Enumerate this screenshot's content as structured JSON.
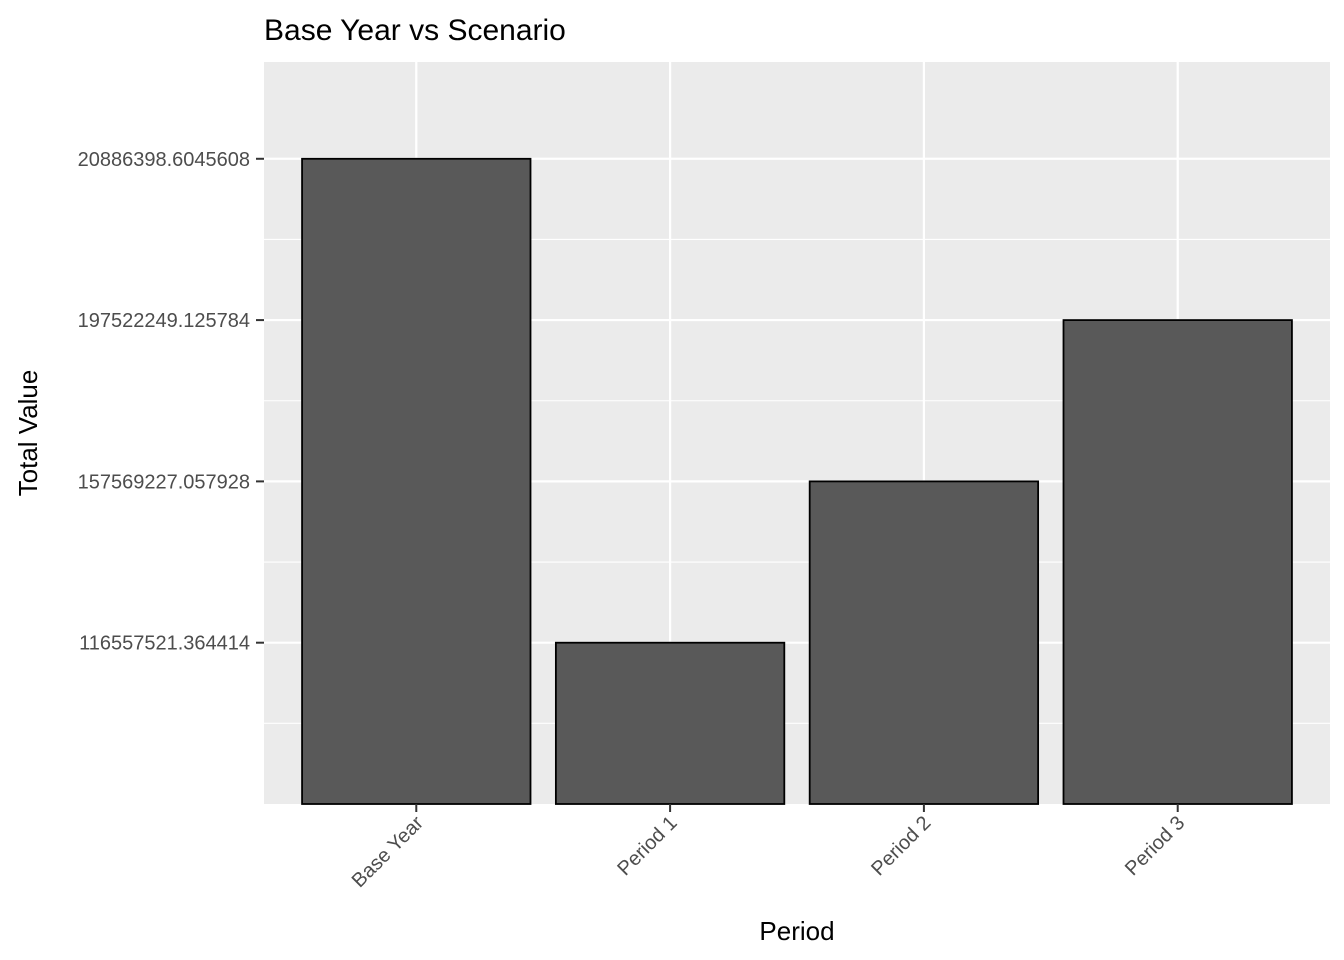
{
  "chart_data": {
    "type": "bar",
    "title": "Base Year vs Scenario",
    "xlabel": "Period",
    "ylabel": "Total Value",
    "categories": [
      "Base Year",
      "Period 1",
      "Period 2",
      "Period 3"
    ],
    "values": [
      4,
      1,
      2,
      3
    ],
    "y_ticks": [
      {
        "value": 1,
        "label": "116557521.364414"
      },
      {
        "value": 2,
        "label": "157569227.057928"
      },
      {
        "value": 3,
        "label": "197522249.125784"
      },
      {
        "value": 4,
        "label": "20886398.6045608"
      }
    ],
    "ylim": [
      0,
      4.6
    ],
    "grid": true,
    "legend": "none",
    "colors": {
      "panel": "#ebebeb",
      "grid": "#ffffff",
      "bar_fill": "#595959",
      "bar_stroke": "#000000",
      "tick": "#333333"
    }
  }
}
